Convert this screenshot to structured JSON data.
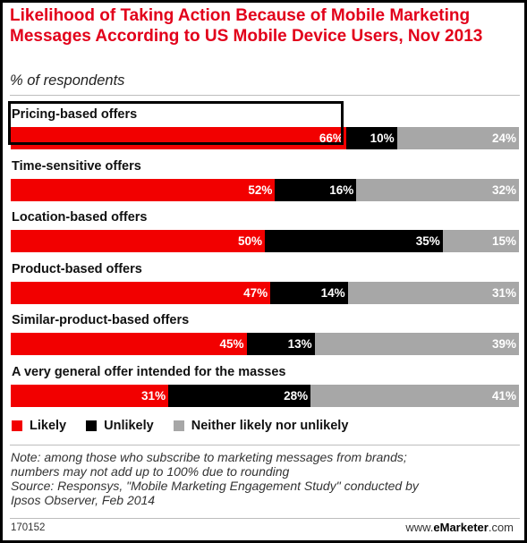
{
  "header": {
    "title": "Likelihood of Taking Action Because of Mobile Marketing Messages According to US Mobile Device Users, Nov 2013",
    "subtitle": "% of respondents"
  },
  "chart_data": {
    "type": "bar",
    "stacked": true,
    "orientation": "horizontal",
    "categories": [
      "Pricing-based offers",
      "Time-sensitive offers",
      "Location-based offers",
      "Product-based offers",
      "Similar-product-based offers",
      "A very general offer intended for the masses"
    ],
    "series": [
      {
        "name": "Likely",
        "color": "#f20000",
        "values": [
          66,
          52,
          50,
          47,
          45,
          31
        ]
      },
      {
        "name": "Unlikely",
        "color": "#000000",
        "values": [
          10,
          16,
          35,
          14,
          13,
          28
        ]
      },
      {
        "name": "Neither likely nor unlikely",
        "color": "#a7a7a7",
        "values": [
          24,
          32,
          15,
          31,
          39,
          41
        ]
      }
    ],
    "value_suffix": "%",
    "legend_placement": "bottom-left",
    "highlighted_category_index": 0
  },
  "note": {
    "text1": "Note: among those who subscribe to marketing messages from brands;",
    "text2": "numbers may not add up to 100% due to rounding",
    "text3": "Source: Responsys, \"Mobile Marketing Engagement Study\" conducted by",
    "text4": "Ipsos Observer, Feb 2014"
  },
  "footer": {
    "id": "170152",
    "brand_prefix": "www.",
    "brand_bold": "eMarketer",
    "brand_suffix": ".com"
  }
}
